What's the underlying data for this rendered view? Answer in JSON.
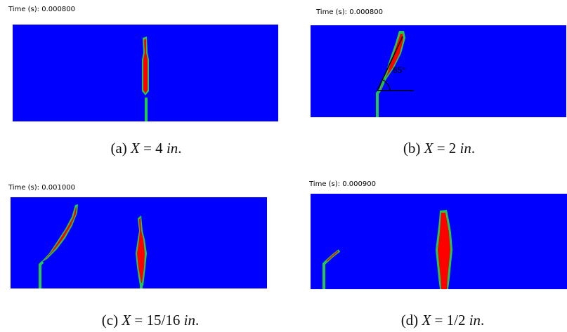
{
  "panels": [
    {
      "time_label": "Time (s): 0.000800",
      "caption": {
        "tag": "(a)",
        "var": "X",
        "eq": " = 4 ",
        "unit": "in",
        "end": "."
      }
    },
    {
      "time_label": "Time (s): 0.000800",
      "angle_label": "65°",
      "caption": {
        "tag": "(b)",
        "var": "X",
        "eq": " = 2 ",
        "unit": "in",
        "end": "."
      }
    },
    {
      "time_label": "Time (s): 0.001000",
      "caption": {
        "tag": "(c)",
        "var": "X",
        "eq": " = 15/16 ",
        "unit": "in",
        "end": "."
      }
    },
    {
      "time_label": "Time (s): 0.000900",
      "caption": {
        "tag": "(d)",
        "var": "X",
        "eq": " = 1/2 ",
        "unit": "in",
        "end": "."
      }
    }
  ],
  "colors": {
    "background": "#0000ff",
    "damage": "#ff0000",
    "interface": "#22c84a",
    "line": "#000000"
  }
}
